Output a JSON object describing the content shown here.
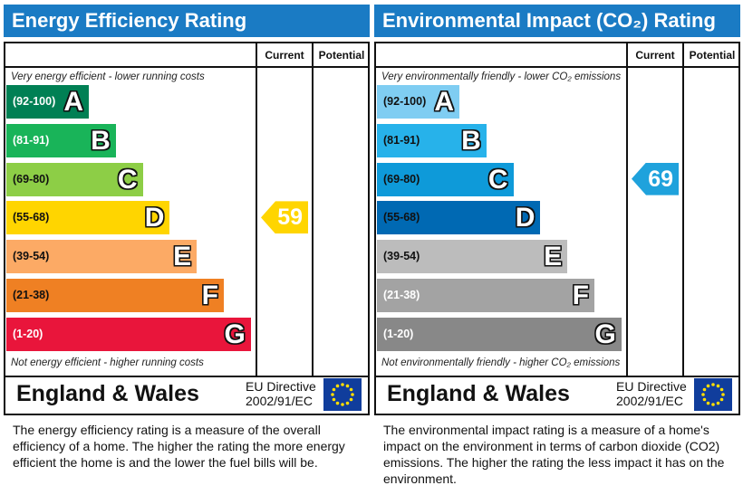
{
  "chart_data": [
    {
      "type": "bar",
      "title": "Energy Efficiency Rating",
      "columns": [
        "Current",
        "Potential"
      ],
      "top_note": "Very energy efficient - lower running costs",
      "bottom_note": "Not energy efficient - higher running costs",
      "categories": [
        "A",
        "B",
        "C",
        "D",
        "E",
        "F",
        "G"
      ],
      "ranges": [
        "(92-100)",
        "(81-91)",
        "(69-80)",
        "(55-68)",
        "(39-54)",
        "(21-38)",
        "(1-20)"
      ],
      "colors": [
        "#008054",
        "#19b459",
        "#8dce46",
        "#ffd500",
        "#fcaa65",
        "#ef8023",
        "#e9153b"
      ],
      "range_text_colors": [
        "#ffffff",
        "#ffffff",
        "#111111",
        "#111111",
        "#111111",
        "#111111",
        "#ffffff"
      ],
      "current": {
        "value": "59",
        "band": "D",
        "color": "#ffd500"
      },
      "potential": null,
      "region": "England & Wales",
      "directive": [
        "EU Directive",
        "2002/91/EC"
      ],
      "description": "The energy efficiency rating is a measure of the overall efficiency of a home.  The higher the rating the more energy efficient the home is and the lower the fuel bills will be."
    },
    {
      "type": "bar",
      "title": "Environmental Impact (CO₂) Rating",
      "columns": [
        "Current",
        "Potential"
      ],
      "top_note": "Very environmentally friendly - lower CO₂ emissions",
      "bottom_note": "Not environmentally friendly - higher CO₂ emissions",
      "categories": [
        "A",
        "B",
        "C",
        "D",
        "E",
        "F",
        "G"
      ],
      "ranges": [
        "(92-100)",
        "(81-91)",
        "(69-80)",
        "(55-68)",
        "(39-54)",
        "(21-38)",
        "(1-20)"
      ],
      "colors": [
        "#7fcdf2",
        "#27b2ea",
        "#0e9ad9",
        "#0069b3",
        "#bcbcbc",
        "#a3a3a3",
        "#888888"
      ],
      "range_text_colors": [
        "#111111",
        "#111111",
        "#111111",
        "#111111",
        "#111111",
        "#ffffff",
        "#ffffff"
      ],
      "current": {
        "value": "69",
        "band": "C",
        "color": "#1fa2dc"
      },
      "potential": null,
      "region": "England & Wales",
      "directive": [
        "EU Directive",
        "2002/91/EC"
      ],
      "description": "The environmental impact rating is a measure of a home's impact on the environment in terms of carbon dioxide (CO2) emissions. The higher the rating the less impact it has on the environment."
    }
  ]
}
